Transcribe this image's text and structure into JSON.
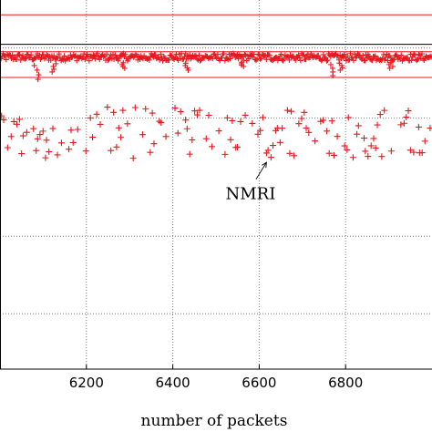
{
  "chart_data": {
    "type": "scatter",
    "title": "",
    "xlabel": "number of packets",
    "ylabel": "",
    "xlim": [
      6000,
      7000
    ],
    "ylim": [
      0,
      10
    ],
    "x_ticks": [
      6200,
      6400,
      6600,
      6800
    ],
    "x_tick_labels": [
      "6200",
      "6400",
      "6600",
      "6800"
    ],
    "y_grid": [
      1.5,
      3.6,
      6.8,
      8.7
    ],
    "grid": true,
    "marker": "+",
    "colors": {
      "series": "#e8161c",
      "grid": "#7f7f7f",
      "axis": "#000000"
    },
    "reference_lines": [
      {
        "y": 9.6,
        "color": "#e8161c"
      },
      {
        "y": 8.8,
        "color": "#000000"
      },
      {
        "y": 8.6,
        "color": "#e8161c"
      },
      {
        "y": 7.9,
        "color": "#e8161c"
      }
    ],
    "series": [
      {
        "name": "",
        "band": "upper",
        "y_center": 8.45,
        "y_spread": 0.1,
        "x_range": [
          6000,
          7000
        ]
      },
      {
        "name": "",
        "band": "lower",
        "y_center": 6.4,
        "y_spread": 0.7,
        "x_range": [
          6000,
          7000
        ]
      }
    ],
    "upper_dips": [
      {
        "x": 6085,
        "y": 7.85
      },
      {
        "x": 6125,
        "y": 8.05
      },
      {
        "x": 6285,
        "y": 8.15
      },
      {
        "x": 6430,
        "y": 8.1
      },
      {
        "x": 6560,
        "y": 8.2
      },
      {
        "x": 6765,
        "y": 7.95
      },
      {
        "x": 6790,
        "y": 8.1
      },
      {
        "x": 6905,
        "y": 8.15
      }
    ],
    "annotations": [
      {
        "text": "NMRI",
        "x": 6580,
        "y": 4.6,
        "arrow_to": {
          "x": 6600,
          "y": 5.7
        }
      }
    ]
  }
}
